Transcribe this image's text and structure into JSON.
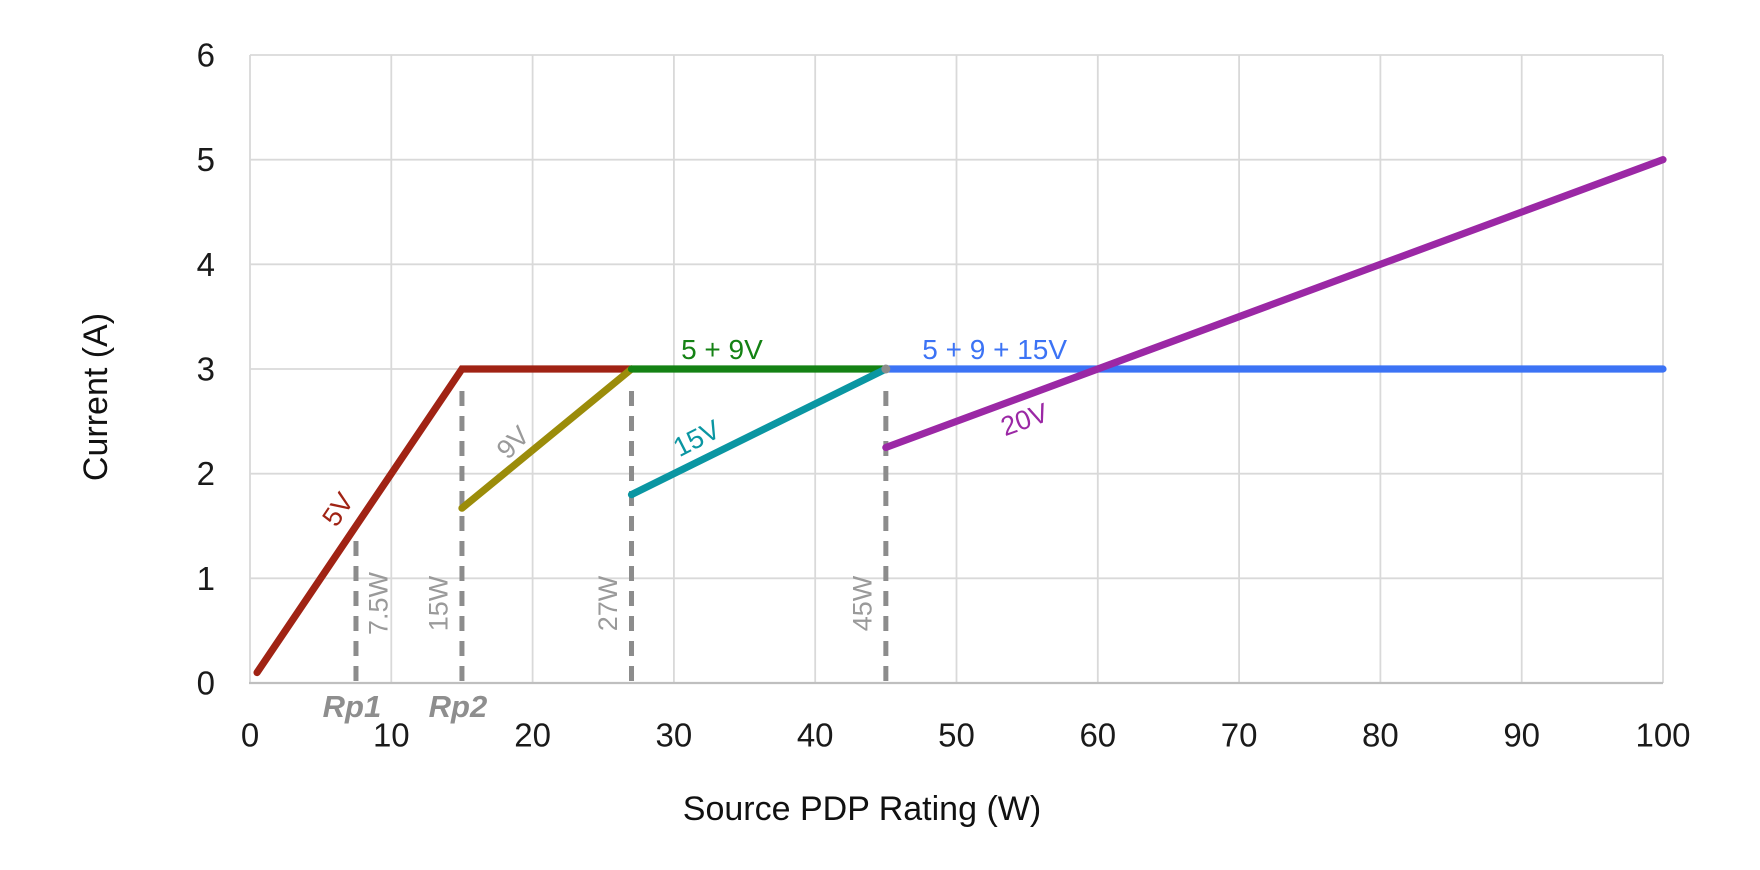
{
  "chart_data": {
    "type": "line",
    "title": "",
    "xlabel": "Source PDP Rating (W)",
    "ylabel": "Current (A)",
    "xlim": [
      0,
      100
    ],
    "ylim": [
      0,
      6
    ],
    "xticks": [
      0,
      10,
      20,
      30,
      40,
      50,
      60,
      70,
      80,
      90,
      100
    ],
    "yticks": [
      0,
      1,
      2,
      3,
      4,
      5,
      6
    ],
    "grid": true,
    "legend_position": "inline-labels",
    "series": [
      {
        "name": "5V",
        "color": "#A02314",
        "points": [
          [
            0.5,
            0.1
          ],
          [
            15,
            3
          ],
          [
            27,
            3
          ]
        ]
      },
      {
        "name": "9V",
        "color": "#9B8C0A",
        "points": [
          [
            15,
            1.67
          ],
          [
            27,
            3
          ]
        ]
      },
      {
        "name": "5 + 9V",
        "color": "#148214",
        "points": [
          [
            27,
            3
          ],
          [
            45,
            3
          ]
        ]
      },
      {
        "name": "15V",
        "color": "#0A96A2",
        "points": [
          [
            27,
            1.8
          ],
          [
            45,
            3
          ]
        ]
      },
      {
        "name": "5 + 9 + 15V",
        "color": "#3C73F5",
        "points": [
          [
            45,
            3
          ],
          [
            100,
            3
          ]
        ]
      },
      {
        "name": "20V",
        "color": "#9B28A5",
        "points": [
          [
            45,
            2.25
          ],
          [
            100,
            5
          ]
        ]
      }
    ],
    "series_labels": [
      {
        "text": "5V",
        "x": 6.2,
        "y": 1.66,
        "rotate": -56,
        "color": "#A02314"
      },
      {
        "text": "9V",
        "x": 18.6,
        "y": 2.3,
        "rotate": -45,
        "color": "#9A9A9A"
      },
      {
        "text": "5 + 9V",
        "x": 33.4,
        "y": 3.19,
        "rotate": 0,
        "color": "#148214"
      },
      {
        "text": "15V",
        "x": 31.6,
        "y": 2.34,
        "rotate": -27,
        "color": "#0A96A2"
      },
      {
        "text": "5 + 9 + 15V",
        "x": 52.7,
        "y": 3.19,
        "rotate": 0,
        "color": "#3C73F5"
      },
      {
        "text": "20V",
        "x": 54.8,
        "y": 2.52,
        "rotate": -20,
        "color": "#9B28A5"
      }
    ],
    "power_markers": [
      {
        "label": "7.5W",
        "x": 7.5,
        "top": 1.5,
        "label_side": "right"
      },
      {
        "label": "15W",
        "x": 15,
        "top": 3,
        "label_side": "left"
      },
      {
        "label": "27W",
        "x": 27,
        "top": 3,
        "label_side": "left"
      },
      {
        "label": "45W",
        "x": 45,
        "top": 3,
        "label_side": "left"
      }
    ],
    "rp_annotations": [
      {
        "label": "Rp1",
        "x": 7.5
      },
      {
        "label": "Rp2",
        "x": 15
      }
    ],
    "junction_marker": {
      "x": 45,
      "y": 3
    },
    "colors": {
      "background": "#FFFFFF",
      "grid": "#D9D9D9",
      "axis_line": "#BFBFBF",
      "tick_text": "#1A1A1A",
      "marker_gray": "#8C8C8C",
      "annotation_gray": "#9A9A9A",
      "rp_gray": "#8E8E8E"
    }
  }
}
